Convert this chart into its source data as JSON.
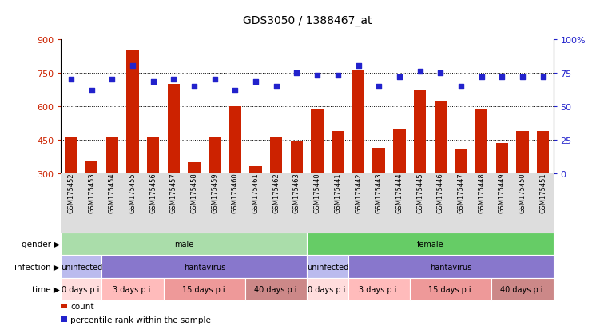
{
  "title": "GDS3050 / 1388467_at",
  "samples": [
    "GSM175452",
    "GSM175453",
    "GSM175454",
    "GSM175455",
    "GSM175456",
    "GSM175457",
    "GSM175458",
    "GSM175459",
    "GSM175460",
    "GSM175461",
    "GSM175462",
    "GSM175463",
    "GSM175440",
    "GSM175441",
    "GSM175442",
    "GSM175443",
    "GSM175444",
    "GSM175445",
    "GSM175446",
    "GSM175447",
    "GSM175448",
    "GSM175449",
    "GSM175450",
    "GSM175451"
  ],
  "bar_values": [
    462,
    355,
    460,
    850,
    462,
    700,
    350,
    465,
    600,
    330,
    465,
    445,
    590,
    490,
    760,
    415,
    495,
    670,
    620,
    410,
    590,
    435,
    490,
    490
  ],
  "dot_values": [
    70,
    62,
    70,
    80,
    68,
    70,
    65,
    70,
    62,
    68,
    65,
    75,
    73,
    73,
    80,
    65,
    72,
    76,
    75,
    65,
    72,
    72,
    72,
    72
  ],
  "ylim": [
    300,
    900
  ],
  "y_ticks": [
    300,
    450,
    600,
    750,
    900
  ],
  "right_ylim": [
    0,
    100
  ],
  "right_yticks": [
    0,
    25,
    50,
    75,
    100
  ],
  "right_yticklabels": [
    "0",
    "25",
    "50",
    "75",
    "100%"
  ],
  "bar_color": "#cc2200",
  "dot_color": "#2222cc",
  "bg_color": "#ffffff",
  "gender_row": {
    "groups": [
      {
        "label": "male",
        "start": 0,
        "end": 12,
        "color": "#aaddaa"
      },
      {
        "label": "female",
        "start": 12,
        "end": 24,
        "color": "#66cc66"
      }
    ]
  },
  "infection_row": {
    "groups": [
      {
        "label": "uninfected",
        "start": 0,
        "end": 2,
        "color": "#bbbbee"
      },
      {
        "label": "hantavirus",
        "start": 2,
        "end": 12,
        "color": "#8877cc"
      },
      {
        "label": "uninfected",
        "start": 12,
        "end": 14,
        "color": "#bbbbee"
      },
      {
        "label": "hantavirus",
        "start": 14,
        "end": 24,
        "color": "#8877cc"
      }
    ]
  },
  "time_row": {
    "groups": [
      {
        "label": "0 days p.i.",
        "start": 0,
        "end": 2,
        "color": "#ffdddd"
      },
      {
        "label": "3 days p.i.",
        "start": 2,
        "end": 5,
        "color": "#ffbbbb"
      },
      {
        "label": "15 days p.i.",
        "start": 5,
        "end": 9,
        "color": "#ee9999"
      },
      {
        "label": "40 days p.i.",
        "start": 9,
        "end": 12,
        "color": "#cc8888"
      },
      {
        "label": "0 days p.i.",
        "start": 12,
        "end": 14,
        "color": "#ffdddd"
      },
      {
        "label": "3 days p.i.",
        "start": 14,
        "end": 17,
        "color": "#ffbbbb"
      },
      {
        "label": "15 days p.i.",
        "start": 17,
        "end": 21,
        "color": "#ee9999"
      },
      {
        "label": "40 days p.i.",
        "start": 21,
        "end": 24,
        "color": "#cc8888"
      }
    ]
  }
}
